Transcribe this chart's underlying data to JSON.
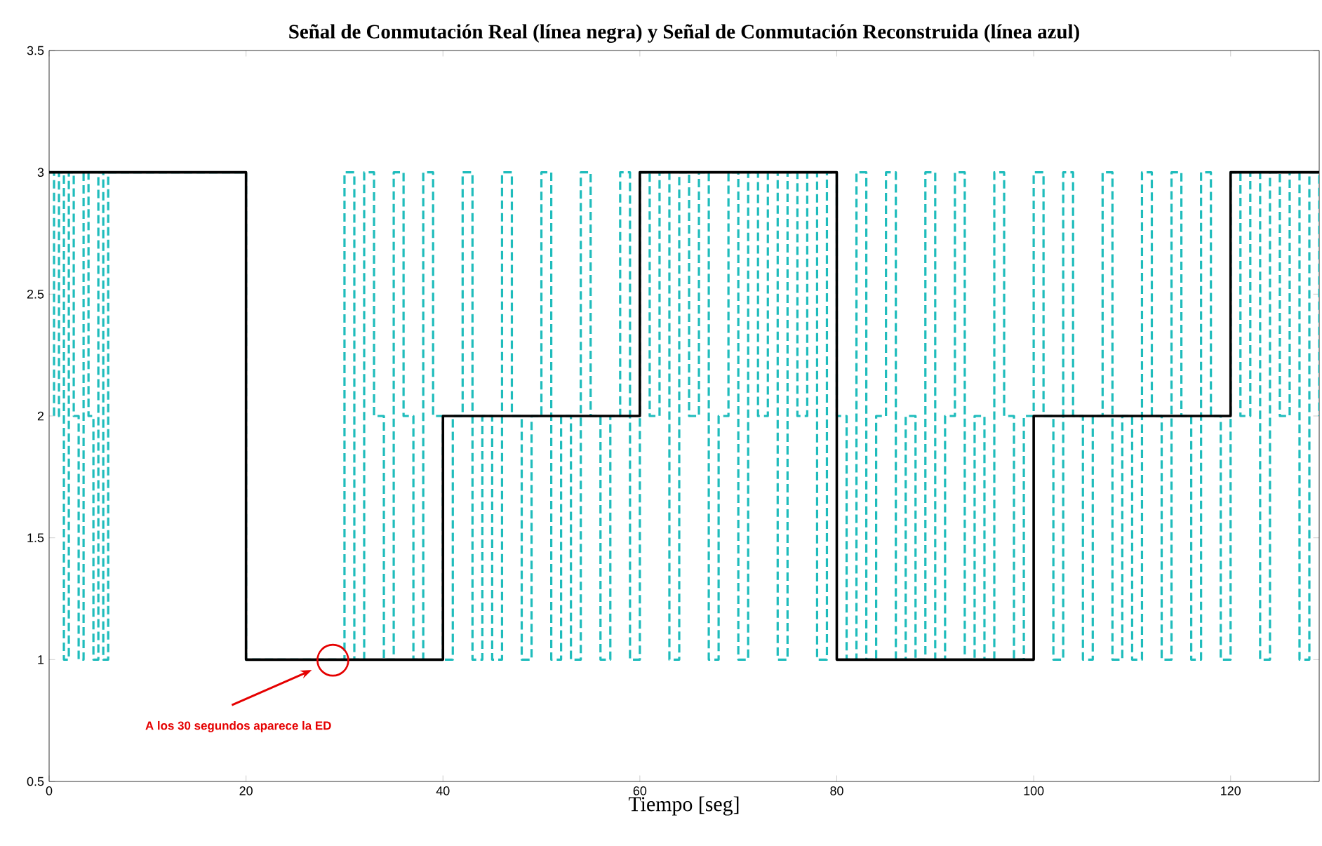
{
  "chart_data": {
    "type": "step",
    "title": "**Señal de Conmutación Real (línea negra) y Señal de Conmutación Reconstruida (línea azul)**",
    "xlabel": "Tiempo [seg]",
    "xlim": [
      0,
      129
    ],
    "ylim": [
      0.5,
      3.5
    ],
    "xticks": [
      0,
      20,
      40,
      60,
      80,
      100,
      120
    ],
    "yticks": [
      0.5,
      1,
      1.5,
      2,
      2.5,
      3,
      3.5
    ],
    "annotations": [
      "A los 30 segundos aparece la ED"
    ],
    "series": [
      {
        "color": "#1fbcbc",
        "line_style": "dashed",
        "x": [
          0,
          0.5,
          1,
          1.5,
          2,
          2.5,
          3,
          3.5,
          4,
          4.5,
          5,
          5.5,
          6,
          20,
          30,
          31,
          32,
          33,
          34,
          35,
          36,
          37,
          38,
          39,
          40,
          41,
          42,
          43,
          44,
          45,
          46,
          47,
          48,
          49,
          50,
          51,
          52,
          53,
          54,
          55,
          56,
          57,
          58,
          59,
          60,
          61,
          62,
          63,
          64,
          65,
          66,
          67,
          68,
          69,
          70,
          71,
          72,
          73,
          74,
          75,
          76,
          77,
          78,
          79,
          80,
          81,
          82,
          83,
          84,
          85,
          86,
          87,
          88,
          89,
          90,
          91,
          92,
          93,
          94,
          95,
          96,
          97,
          98,
          99,
          100,
          101,
          102,
          103,
          104,
          105,
          106,
          107,
          108,
          109,
          110,
          111,
          112,
          113,
          114,
          115,
          116,
          117,
          118,
          119,
          120,
          121,
          122,
          123,
          124,
          125,
          126,
          127,
          128,
          129
        ],
        "values": [
          3,
          2,
          3,
          1,
          3,
          2,
          1,
          3,
          2,
          1,
          3,
          1,
          3,
          1,
          3,
          1,
          3,
          2,
          1,
          3,
          2,
          1,
          3,
          2,
          1,
          2,
          3,
          1,
          2,
          1,
          3,
          2,
          1,
          2,
          3,
          1,
          2,
          1,
          3,
          2,
          1,
          2,
          3,
          1,
          3,
          2,
          3,
          1,
          3,
          2,
          3,
          1,
          2,
          3,
          1,
          3,
          2,
          3,
          1,
          3,
          2,
          3,
          1,
          3,
          2,
          1,
          3,
          1,
          2,
          3,
          1,
          2,
          1,
          3,
          1,
          2,
          3,
          1,
          2,
          1,
          3,
          2,
          1,
          2,
          3,
          2,
          1,
          3,
          2,
          1,
          2,
          3,
          1,
          2,
          1,
          3,
          2,
          1,
          3,
          2,
          1,
          3,
          2,
          1,
          3,
          2,
          3,
          1,
          3,
          2,
          3,
          1,
          3,
          2
        ]
      },
      {
        "color": "#000000",
        "line_style": "solid",
        "x": [
          0,
          20,
          40,
          60,
          80,
          100,
          120,
          129
        ],
        "values": [
          3,
          1,
          2,
          3,
          1,
          2,
          3,
          3
        ]
      }
    ]
  }
}
